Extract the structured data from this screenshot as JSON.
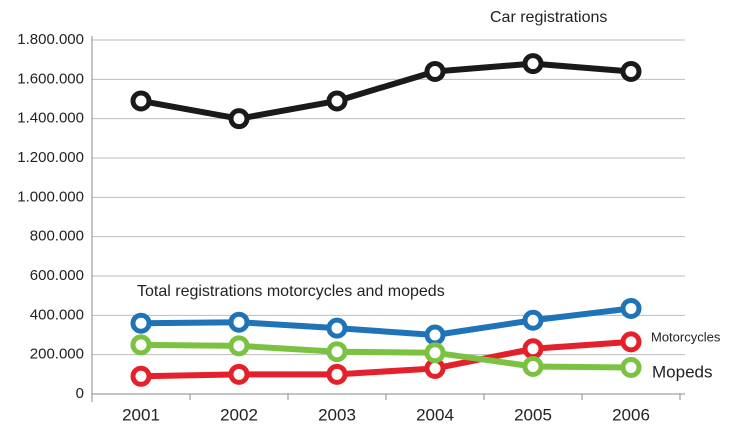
{
  "chart_data": {
    "type": "line",
    "categories": [
      "2001",
      "2002",
      "2003",
      "2004",
      "2005",
      "2006"
    ],
    "series": [
      {
        "name": "Car registrations",
        "color": "#1a1a1a",
        "values": [
          1490000,
          1400000,
          1490000,
          1640000,
          1680000,
          1640000
        ]
      },
      {
        "name": "Total registrations motorcycles and mopeds",
        "color": "#1f73b7",
        "values": [
          360000,
          365000,
          335000,
          300000,
          375000,
          435000
        ]
      },
      {
        "name": "Motorcycles",
        "color": "#e4202a",
        "values": [
          90000,
          100000,
          100000,
          130000,
          230000,
          265000
        ]
      },
      {
        "name": "Mopeds",
        "color": "#7cc242",
        "values": [
          250000,
          245000,
          215000,
          210000,
          140000,
          135000
        ]
      }
    ],
    "ylim": [
      0,
      1800000
    ],
    "yticks": [
      0,
      {
        "value": 200000,
        "label": "200.000"
      },
      {
        "value": 400000,
        "label": "400.000"
      },
      {
        "value": 600000,
        "label": "600.000"
      },
      {
        "value": 800000,
        "label": "800.000"
      },
      {
        "value": 1000000,
        "label": "1.000.000"
      },
      {
        "value": 1200000,
        "label": "1.200.000"
      },
      {
        "value": 1400000,
        "label": "1.400.000"
      },
      {
        "value": 1600000,
        "label": "1.600.000"
      },
      {
        "value": 1800000,
        "label": "1.800.000"
      }
    ],
    "grid": true
  }
}
